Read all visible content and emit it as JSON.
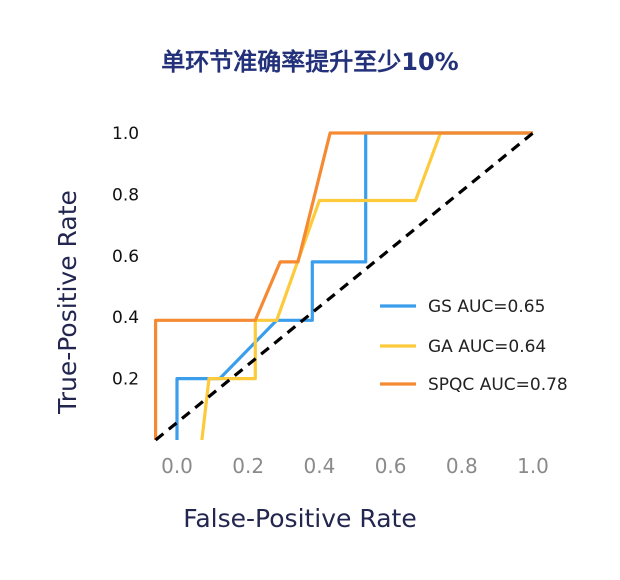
{
  "chart_data": {
    "type": "line",
    "title": "单环节准确率提升至少10%",
    "xlabel": "False-Positive Rate",
    "ylabel": "True-Positive Rate",
    "xlim": [
      -0.08,
      1.04
    ],
    "ylim": [
      0.0,
      1.0
    ],
    "x_ticks": [
      "0.0",
      "0.2",
      "0.4",
      "0.6",
      "0.8",
      "1.0"
    ],
    "y_ticks": [
      "0.2",
      "0.4",
      "0.6",
      "0.8",
      "1.0"
    ],
    "grid": false,
    "legend": "right",
    "series": [
      {
        "name": "GS AUC=0.65",
        "color": "#3b9eed",
        "points": [
          [
            0.0,
            0.0
          ],
          [
            0.0,
            0.2
          ],
          [
            0.12,
            0.2
          ],
          [
            0.28,
            0.39
          ],
          [
            0.38,
            0.39
          ],
          [
            0.38,
            0.58
          ],
          [
            0.53,
            0.58
          ],
          [
            0.53,
            1.0
          ],
          [
            1.0,
            1.0
          ]
        ]
      },
      {
        "name": "GA AUC=0.64",
        "color": "#fcca3a",
        "points": [
          [
            0.07,
            0.0
          ],
          [
            0.09,
            0.2
          ],
          [
            0.22,
            0.2
          ],
          [
            0.22,
            0.39
          ],
          [
            0.28,
            0.39
          ],
          [
            0.4,
            0.78
          ],
          [
            0.67,
            0.78
          ],
          [
            0.74,
            1.0
          ],
          [
            1.0,
            1.0
          ]
        ]
      },
      {
        "name": "SPQC AUC=0.78",
        "color": "#f58a33",
        "points": [
          [
            -0.06,
            0.0
          ],
          [
            -0.06,
            0.39
          ],
          [
            0.22,
            0.39
          ],
          [
            0.29,
            0.58
          ],
          [
            0.34,
            0.58
          ],
          [
            0.43,
            1.0
          ],
          [
            1.0,
            1.0
          ]
        ]
      }
    ],
    "reference_line": {
      "color": "#000000",
      "dashed": true,
      "points": [
        [
          -0.06,
          0.0
        ],
        [
          1.0,
          1.0
        ]
      ]
    }
  }
}
